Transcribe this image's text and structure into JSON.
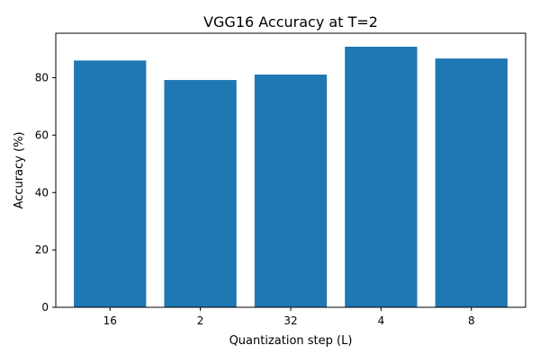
{
  "chart_data": {
    "type": "bar",
    "title": "VGG16 Accuracy at T=2",
    "xlabel": "Quantization step (L)",
    "ylabel": "Accuracy (%)",
    "categories": [
      "16",
      "2",
      "32",
      "4",
      "8"
    ],
    "values": [
      86,
      79.2,
      81.1,
      90.8,
      86.7
    ],
    "ylim": [
      0,
      95.5
    ],
    "yticks": [
      0,
      20,
      40,
      60,
      80
    ],
    "bar_color": "#1f77b4",
    "grid": false,
    "legend": "none"
  }
}
